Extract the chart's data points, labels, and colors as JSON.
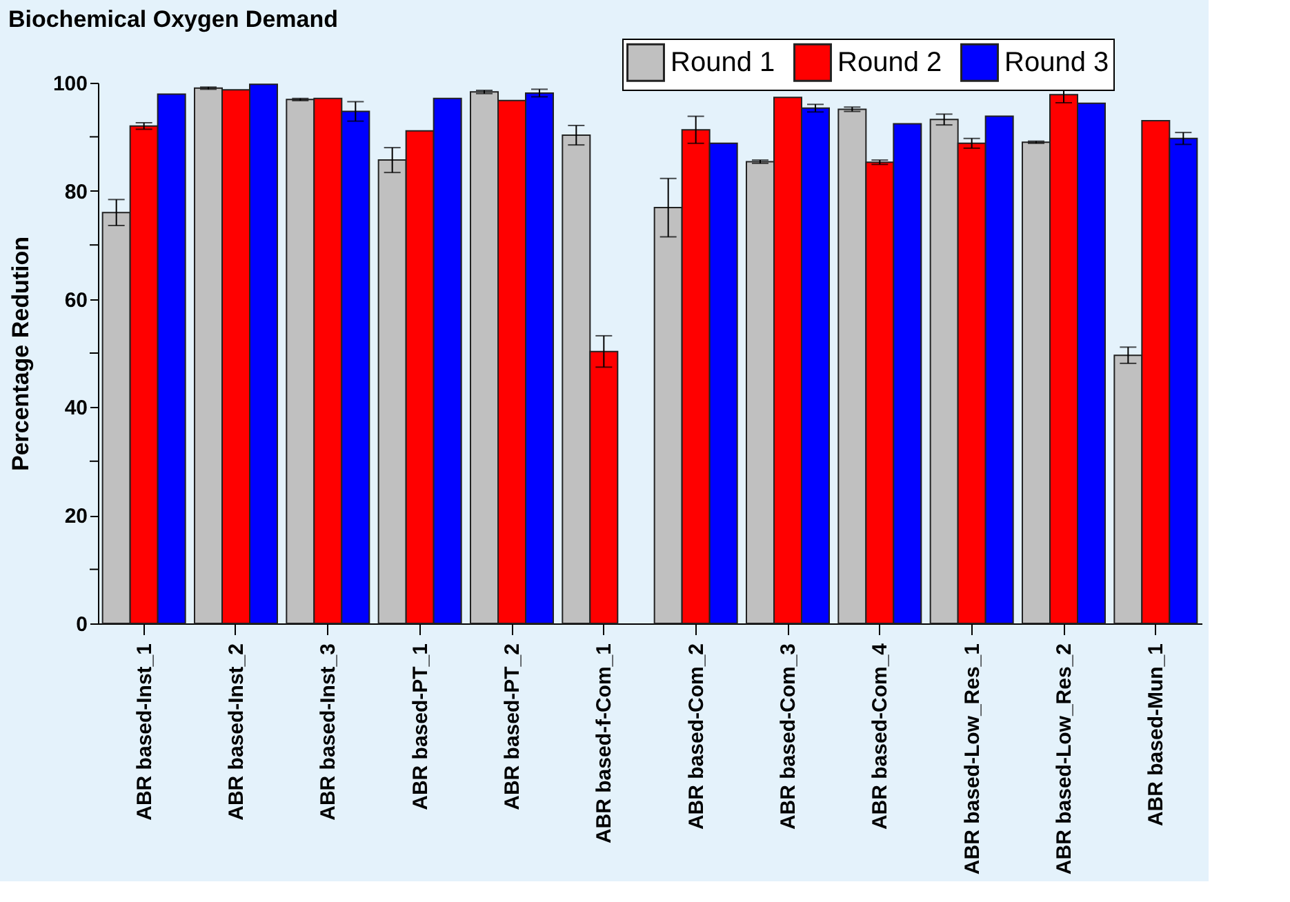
{
  "chart_data": {
    "type": "bar",
    "title": "Biochemical Oxygen Demand",
    "ylabel": "Percentage Redution",
    "categories": [
      "ABR based-Inst_1",
      "ABR based-Inst_2",
      "ABR based-Inst_3",
      "ABR based-PT_1",
      "ABR based-PT_2",
      "ABR based-f-Com_1",
      "ABR based-Com_2",
      "ABR based-Com_3",
      "ABR based-Com_4",
      "ABR based-Low_Res_1",
      "ABR based-Low_Res_2",
      "ABR based-Mun_1"
    ],
    "series": [
      {
        "name": "Round 1",
        "color": "#c0c0c0",
        "values": [
          76.0,
          99.0,
          96.9,
          85.7,
          98.3,
          90.3,
          76.9,
          85.4,
          95.1,
          93.2,
          89.0,
          49.6
        ],
        "errors": [
          2.4,
          0.2,
          0.2,
          2.3,
          0.3,
          1.8,
          5.4,
          0.3,
          0.4,
          1.0,
          0.2,
          1.5
        ]
      },
      {
        "name": "Round 2",
        "color": "#ff0000",
        "values": [
          92.0,
          98.7,
          97.1,
          91.1,
          96.7,
          50.3,
          91.3,
          97.3,
          85.3,
          88.8,
          97.8,
          93.0
        ],
        "errors": [
          0.6,
          null,
          null,
          null,
          null,
          2.9,
          2.5,
          null,
          0.4,
          0.9,
          1.5,
          null
        ]
      },
      {
        "name": "Round 3",
        "color": "#0000ff",
        "values": [
          97.9,
          99.7,
          94.7,
          97.1,
          98.1,
          null,
          88.8,
          95.3,
          92.4,
          93.8,
          96.2,
          89.7
        ],
        "errors": [
          null,
          null,
          1.8,
          null,
          0.7,
          null,
          null,
          0.7,
          null,
          null,
          null,
          1.1
        ]
      }
    ],
    "ylim": [
      0,
      100
    ],
    "yticks": [
      0,
      {
        "value": 10,
        "label": null
      },
      20,
      {
        "value": 30,
        "label": null
      },
      40,
      {
        "value": 50,
        "label": null
      },
      60,
      {
        "value": 70,
        "label": null
      },
      80,
      {
        "value": 90,
        "label": null
      },
      100
    ],
    "legend": "top right",
    "grid": false
  }
}
